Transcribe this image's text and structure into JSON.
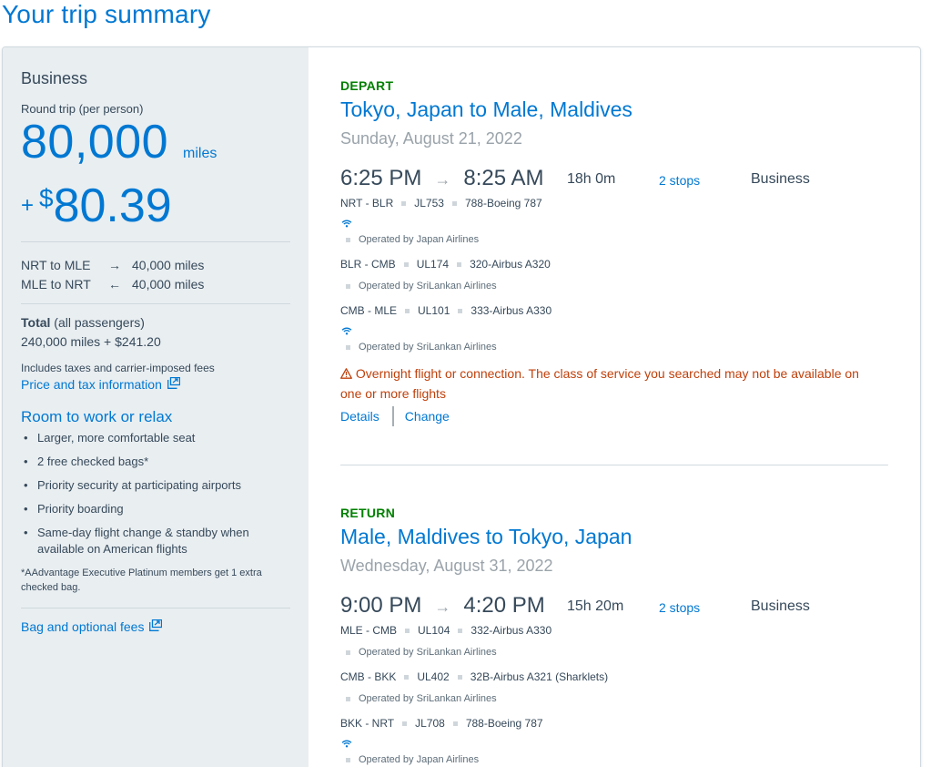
{
  "page": {
    "title": "Your trip summary"
  },
  "summary": {
    "cabin": "Business",
    "round_trip_label": "Round trip (per person)",
    "miles": "80,000",
    "miles_unit": "miles",
    "price_plus": "+",
    "price_dollar": "$",
    "price_amount": "80.39",
    "segments": [
      {
        "route": "NRT to MLE",
        "arrow": "→",
        "miles": "40,000 miles"
      },
      {
        "route": "MLE to NRT",
        "arrow": "←",
        "miles": "40,000 miles"
      }
    ],
    "total_label": "Total",
    "total_suffix": " (all passengers)",
    "total_value": "240,000 miles + $241.20",
    "includes_text": "Includes taxes and carrier-imposed fees",
    "price_tax_link": "Price and tax information",
    "perks_title": "Room to work or relax",
    "perks": [
      "Larger, more comfortable seat",
      "2 free checked bags*",
      "Priority security at participating airports",
      "Priority boarding",
      "Same-day flight change & standby when available on American flights"
    ],
    "footnote": "*AAdvantage Executive Platinum members get 1 extra checked bag.",
    "bag_fees_link": "Bag and optional fees"
  },
  "depart": {
    "label": "DEPART",
    "route": "Tokyo, Japan to Male, Maldives",
    "date": "Sunday, August 21, 2022",
    "depart_time": "6:25 PM",
    "arrive_time": "8:25 AM",
    "arrow": "→",
    "duration": "18h 0m",
    "stops": "2 stops",
    "cabin": "Business",
    "legs": [
      {
        "route": "NRT - BLR",
        "flight": "JL753",
        "aircraft": "788-Boeing 787",
        "wifi": true,
        "operated": "Operated by Japan Airlines"
      },
      {
        "route": "BLR - CMB",
        "flight": "UL174",
        "aircraft": "320-Airbus A320",
        "wifi": false,
        "operated": "Operated by SriLankan Airlines"
      },
      {
        "route": "CMB - MLE",
        "flight": "UL101",
        "aircraft": "333-Airbus A330",
        "wifi": true,
        "operated": "Operated by SriLankan Airlines"
      }
    ],
    "warning": "Overnight flight or connection. The class of service you searched may not be available on one or more flights",
    "details_link": "Details",
    "change_link": "Change"
  },
  "return": {
    "label": "RETURN",
    "route": "Male, Maldives to Tokyo, Japan",
    "date": "Wednesday, August 31, 2022",
    "depart_time": "9:00 PM",
    "arrive_time": "4:20 PM",
    "arrow": "→",
    "duration": "15h 20m",
    "stops": "2 stops",
    "cabin": "Business",
    "legs": [
      {
        "route": "MLE - CMB",
        "flight": "UL104",
        "aircraft": "332-Airbus A330",
        "wifi": false,
        "operated": "Operated by SriLankan Airlines"
      },
      {
        "route": "CMB - BKK",
        "flight": "UL402",
        "aircraft": "32B-Airbus A321 (Sharklets)",
        "wifi": false,
        "operated": "Operated by SriLankan Airlines"
      },
      {
        "route": "BKK - NRT",
        "flight": "JL708",
        "aircraft": "788-Boeing 787",
        "wifi": true,
        "operated": "Operated by Japan Airlines"
      }
    ]
  },
  "colors": {
    "accent": "#0078d2",
    "green": "#008000",
    "warning": "#c0400b",
    "sidebar_bg": "#e9eef1"
  },
  "icons": {
    "external_link": "external-link-icon",
    "wifi": "wifi-icon",
    "warning": "warning-icon"
  }
}
